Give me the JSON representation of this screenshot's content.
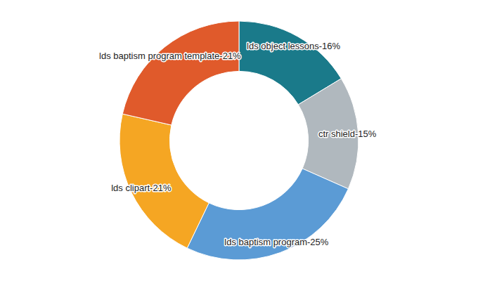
{
  "chart_data": {
    "type": "pie",
    "values": [
      16,
      15,
      25,
      21,
      21
    ],
    "value_labels": [
      "lds object lessons-16%",
      "ctr shield-15%",
      "lds baptism program-25%",
      "lds clipart-21%",
      "lds baptism program template-21%"
    ],
    "colors": [
      "#1a7a8a",
      "#b0b8be",
      "#5b9bd5",
      "#f5a623",
      "#e05a2b"
    ],
    "data_labels": true
  }
}
